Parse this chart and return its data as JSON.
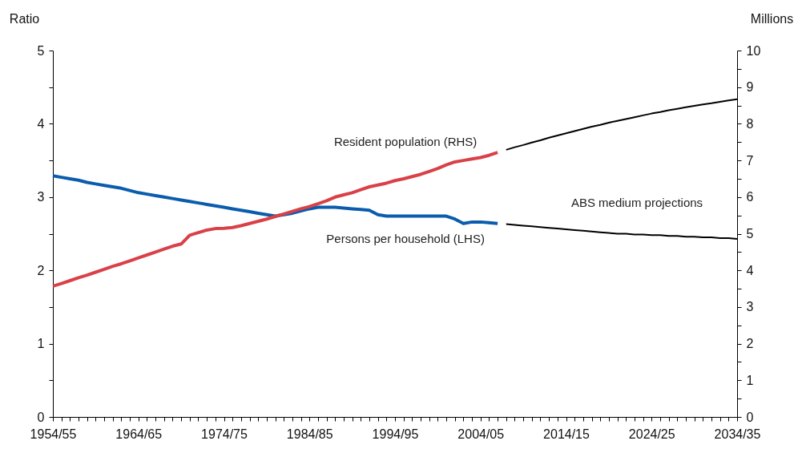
{
  "chart_data": {
    "type": "line",
    "categories": [
      "1954/55",
      null,
      null,
      null,
      null,
      null,
      null,
      null,
      null,
      null,
      "1964/65",
      null,
      null,
      null,
      null,
      null,
      null,
      null,
      null,
      null,
      "1974/75",
      null,
      null,
      null,
      null,
      null,
      null,
      null,
      null,
      null,
      "1984/85",
      null,
      null,
      null,
      null,
      null,
      null,
      null,
      null,
      null,
      "1994/95",
      null,
      null,
      null,
      null,
      null,
      null,
      null,
      null,
      null,
      "2004/05",
      null,
      null,
      null,
      null,
      null,
      null,
      null,
      null,
      null,
      "2014/15",
      null,
      null,
      null,
      null,
      null,
      null,
      null,
      null,
      null,
      "2024/25",
      null,
      null,
      null,
      null,
      null,
      null,
      null,
      null,
      null,
      "2034/35"
    ],
    "series": [
      {
        "name": "Persons per household (LHS)",
        "color": "#0a5cad",
        "values": [
          3.29,
          3.27,
          3.25,
          3.23,
          3.2,
          3.18,
          3.16,
          3.14,
          3.12,
          3.09,
          3.06,
          3.04,
          3.02,
          3.0,
          2.98,
          2.96,
          2.94,
          2.92,
          2.9,
          2.88,
          2.86,
          2.84,
          2.82,
          2.8,
          2.78,
          2.76,
          2.74,
          2.76,
          2.78,
          2.81,
          2.84,
          2.86,
          2.86,
          2.86,
          2.85,
          2.84,
          2.83,
          2.82,
          2.76,
          2.74,
          2.74,
          2.74,
          2.74,
          2.74,
          2.74,
          2.74,
          2.74,
          2.7,
          2.64,
          2.66,
          2.66,
          2.65,
          2.64,
          null,
          null,
          null,
          null,
          null,
          null,
          null,
          null,
          null,
          null,
          null,
          null,
          null,
          null,
          null,
          null,
          null,
          null,
          null,
          null,
          null,
          null,
          null,
          null,
          null,
          null,
          null,
          null
        ]
      },
      {
        "name": "Resident population (RHS)",
        "color": "#d94048",
        "axis": "y2",
        "values": [
          3.57,
          3.64,
          3.72,
          3.8,
          3.87,
          3.95,
          4.03,
          4.11,
          4.18,
          4.26,
          4.34,
          4.42,
          4.5,
          4.58,
          4.66,
          4.72,
          4.96,
          5.03,
          5.1,
          5.14,
          5.15,
          5.17,
          5.22,
          5.28,
          5.34,
          5.4,
          5.47,
          5.54,
          5.61,
          5.68,
          5.74,
          5.82,
          5.9,
          6.0,
          6.06,
          6.12,
          6.2,
          6.28,
          6.33,
          6.38,
          6.45,
          6.5,
          6.56,
          6.62,
          6.7,
          6.78,
          6.88,
          6.96,
          7.0,
          7.04,
          7.08,
          7.14,
          7.22,
          null,
          null,
          null,
          null,
          null,
          null,
          null,
          null,
          null,
          null,
          null,
          null,
          null,
          null,
          null,
          null,
          null,
          null,
          null,
          null,
          null,
          null,
          null,
          null,
          null,
          null,
          null,
          null
        ]
      },
      {
        "color": "#000000",
        "values": [
          null,
          null,
          null,
          null,
          null,
          null,
          null,
          null,
          null,
          null,
          null,
          null,
          null,
          null,
          null,
          null,
          null,
          null,
          null,
          null,
          null,
          null,
          null,
          null,
          null,
          null,
          null,
          null,
          null,
          null,
          null,
          null,
          null,
          null,
          null,
          null,
          null,
          null,
          null,
          null,
          null,
          null,
          null,
          null,
          null,
          null,
          null,
          null,
          null,
          null,
          null,
          null,
          null,
          2.63,
          2.62,
          2.61,
          2.6,
          2.59,
          2.58,
          2.57,
          2.56,
          2.55,
          2.54,
          2.53,
          2.52,
          2.51,
          2.5,
          2.5,
          2.49,
          2.49,
          2.48,
          2.48,
          2.47,
          2.47,
          2.46,
          2.46,
          2.45,
          2.45,
          2.44,
          2.44,
          2.43
        ]
      },
      {
        "color": "#000000",
        "axis": "y2",
        "values": [
          null,
          null,
          null,
          null,
          null,
          null,
          null,
          null,
          null,
          null,
          null,
          null,
          null,
          null,
          null,
          null,
          null,
          null,
          null,
          null,
          null,
          null,
          null,
          null,
          null,
          null,
          null,
          null,
          null,
          null,
          null,
          null,
          null,
          null,
          null,
          null,
          null,
          null,
          null,
          null,
          null,
          null,
          null,
          null,
          null,
          null,
          null,
          null,
          null,
          null,
          null,
          null,
          null,
          7.29,
          7.36,
          7.42,
          7.49,
          7.55,
          7.62,
          7.68,
          7.74,
          7.8,
          7.86,
          7.92,
          7.97,
          8.03,
          8.08,
          8.13,
          8.18,
          8.23,
          8.28,
          8.32,
          8.37,
          8.41,
          8.45,
          8.49,
          8.53,
          8.56,
          8.6,
          8.64,
          8.67
        ]
      }
    ],
    "annotations": [
      "ABS medium projections"
    ],
    "ylabel": "Ratio",
    "y2label": "Millions",
    "ylim": [
      0,
      5
    ],
    "yticks": [
      0,
      {
        "value": 0.5,
        "label": null
      },
      1,
      {
        "value": 1.5,
        "label": null
      },
      2,
      {
        "value": 2.5,
        "label": null
      },
      3,
      {
        "value": 3.5,
        "label": null
      },
      4,
      {
        "value": 4.5,
        "label": null
      },
      5
    ],
    "y2lim": [
      0,
      10
    ],
    "y2ticks": [
      0,
      {
        "value": 0.5,
        "label": null
      },
      1,
      {
        "value": 1.5,
        "label": null
      },
      2,
      {
        "value": 2.5,
        "label": null
      },
      3,
      {
        "value": 3.5,
        "label": null
      },
      4,
      {
        "value": 4.5,
        "label": null
      },
      5,
      {
        "value": 5.5,
        "label": null
      },
      6,
      {
        "value": 6.5,
        "label": null
      },
      7,
      {
        "value": 7.5,
        "label": null
      },
      8,
      {
        "value": 8.5,
        "label": null
      },
      9,
      {
        "value": 9.5,
        "label": null
      },
      10
    ]
  }
}
